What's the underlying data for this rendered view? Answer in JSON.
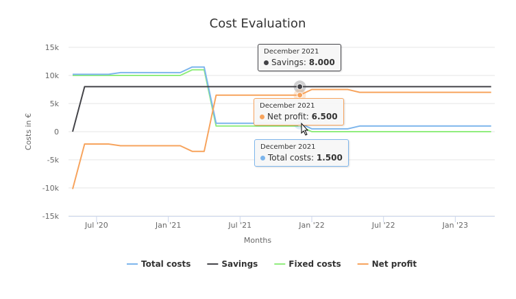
{
  "chart_data": {
    "type": "line",
    "title": "Cost Evaluation",
    "xlabel": "Months",
    "ylabel": "Costs in €",
    "ylim": [
      -15000,
      15000
    ],
    "yticks": [
      "15k",
      "10k",
      "5k",
      "0",
      "-5k",
      "-10k",
      "-15k"
    ],
    "ytick_values": [
      15000,
      10000,
      5000,
      0,
      -5000,
      -10000,
      -15000
    ],
    "xticks": [
      {
        "label": "Jul '20",
        "index": 2
      },
      {
        "label": "Jan '21",
        "index": 8
      },
      {
        "label": "Jul '21",
        "index": 14
      },
      {
        "label": "Jan '22",
        "index": 20
      },
      {
        "label": "Jul '22",
        "index": 26
      },
      {
        "label": "Jan '23",
        "index": 32
      }
    ],
    "x": [
      "2020-05",
      "2020-06",
      "2020-07",
      "2020-08",
      "2020-09",
      "2020-10",
      "2020-11",
      "2020-12",
      "2021-01",
      "2021-02",
      "2021-03",
      "2021-04",
      "2021-05",
      "2021-06",
      "2021-07",
      "2021-08",
      "2021-09",
      "2021-10",
      "2021-11",
      "2021-12",
      "2022-01",
      "2022-02",
      "2022-03",
      "2022-04",
      "2022-05",
      "2022-06",
      "2022-07",
      "2022-08",
      "2022-09",
      "2022-10",
      "2022-11",
      "2022-12",
      "2023-01",
      "2023-02",
      "2023-03",
      "2023-04"
    ],
    "grid": true,
    "legend": "bottom",
    "series": [
      {
        "name": "Total costs",
        "color": "#7cb5ec",
        "values": [
          10200,
          10200,
          10200,
          10200,
          10500,
          10500,
          10500,
          10500,
          10500,
          10500,
          11500,
          11500,
          1500,
          1500,
          1500,
          1500,
          1500,
          1500,
          1500,
          1500,
          500,
          500,
          500,
          500,
          1000,
          1000,
          1000,
          1000,
          1000,
          1000,
          1000,
          1000,
          1000,
          1000,
          1000,
          1000
        ]
      },
      {
        "name": "Savings",
        "color": "#434348",
        "values": [
          0,
          8000,
          8000,
          8000,
          8000,
          8000,
          8000,
          8000,
          8000,
          8000,
          8000,
          8000,
          8000,
          8000,
          8000,
          8000,
          8000,
          8000,
          8000,
          8000,
          8000,
          8000,
          8000,
          8000,
          8000,
          8000,
          8000,
          8000,
          8000,
          8000,
          8000,
          8000,
          8000,
          8000,
          8000,
          8000
        ]
      },
      {
        "name": "Fixed costs",
        "color": "#90ed7d",
        "values": [
          10000,
          10000,
          10000,
          10000,
          10000,
          10000,
          10000,
          10000,
          10000,
          10000,
          11000,
          11000,
          1000,
          1000,
          1000,
          1000,
          1000,
          1000,
          1000,
          1000,
          0,
          0,
          0,
          0,
          0,
          0,
          0,
          0,
          0,
          0,
          0,
          0,
          0,
          0,
          0,
          0
        ]
      },
      {
        "name": "Net profit",
        "color": "#f7a35c",
        "values": [
          -10200,
          -2200,
          -2200,
          -2200,
          -2500,
          -2500,
          -2500,
          -2500,
          -2500,
          -2500,
          -3500,
          -3500,
          6500,
          6500,
          6500,
          6500,
          6500,
          6500,
          6500,
          6500,
          7500,
          7500,
          7500,
          7500,
          7000,
          7000,
          7000,
          7000,
          7000,
          7000,
          7000,
          7000,
          7000,
          7000,
          7000,
          7000
        ]
      }
    ],
    "hover_index": 19
  },
  "tooltips": [
    {
      "date": "December 2021",
      "series": "Savings",
      "value": "8.000",
      "color": "#434348"
    },
    {
      "date": "December 2021",
      "series": "Net profit",
      "value": "6.500",
      "color": "#f7a35c"
    },
    {
      "date": "December 2021",
      "series": "Total costs",
      "value": "1.500",
      "color": "#7cb5ec"
    }
  ]
}
